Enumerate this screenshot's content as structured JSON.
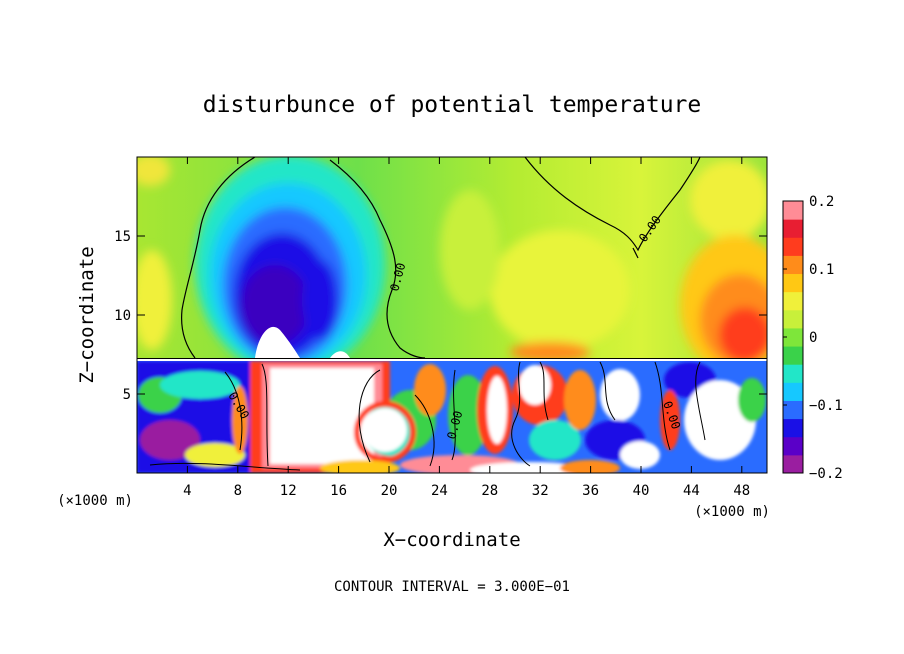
{
  "chart_data": {
    "type": "heatmap",
    "title": "disturbunce of potential temperature",
    "xlabel": "X−coordinate",
    "ylabel": "Z−coordinate",
    "x_unit_left": "(×1000 m)",
    "x_unit_right": "(×1000 m)",
    "footer": "CONTOUR INTERVAL = 3.000E−01",
    "xlim": [
      0,
      50
    ],
    "ylim": [
      0,
      20
    ],
    "x_ticks": [
      4,
      8,
      12,
      16,
      20,
      24,
      28,
      32,
      36,
      40,
      44,
      48
    ],
    "x_tick_labels": [
      "4",
      "8",
      "12",
      "16",
      "20",
      "24",
      "28",
      "32",
      "36",
      "40",
      "44",
      "48"
    ],
    "y_ticks": [
      5,
      10,
      15
    ],
    "y_tick_labels": [
      "5",
      "10",
      "15"
    ],
    "contour_labels": [
      "0.00",
      "0.00",
      "0.00",
      "0.00",
      "0.00"
    ],
    "colorbar": {
      "range": [
        -0.2,
        0.2
      ],
      "ticks": [
        0.2,
        0.1,
        0,
        -0.1,
        -0.2
      ],
      "tick_labels": [
        "0.2",
        "0.1",
        "0",
        "−0.1",
        "−0.2"
      ],
      "colors": [
        "#9a1ea0",
        "#5a00c8",
        "#1a10e6",
        "#2a6cff",
        "#16c8ff",
        "#22e6c8",
        "#3ad24a",
        "#7ee63a",
        "#c8f03a",
        "#f0f03a",
        "#ffc814",
        "#ff8c1a",
        "#ff3c1e",
        "#e81e32",
        "#ff8c96"
      ]
    },
    "upper_layer_features": [
      {
        "kind": "negative anomaly",
        "x_range": [
          5,
          18
        ],
        "z_range": [
          7,
          18
        ],
        "min_value": -0.2
      },
      {
        "kind": "positive anomaly",
        "x_range": [
          41,
          50
        ],
        "z_range": [
          7,
          13
        ],
        "max_value": 0.2
      }
    ],
    "lower_layer": {
      "z_range": [
        0,
        7.2
      ],
      "description_values_exceed": [
        -0.2,
        0.2
      ]
    }
  }
}
